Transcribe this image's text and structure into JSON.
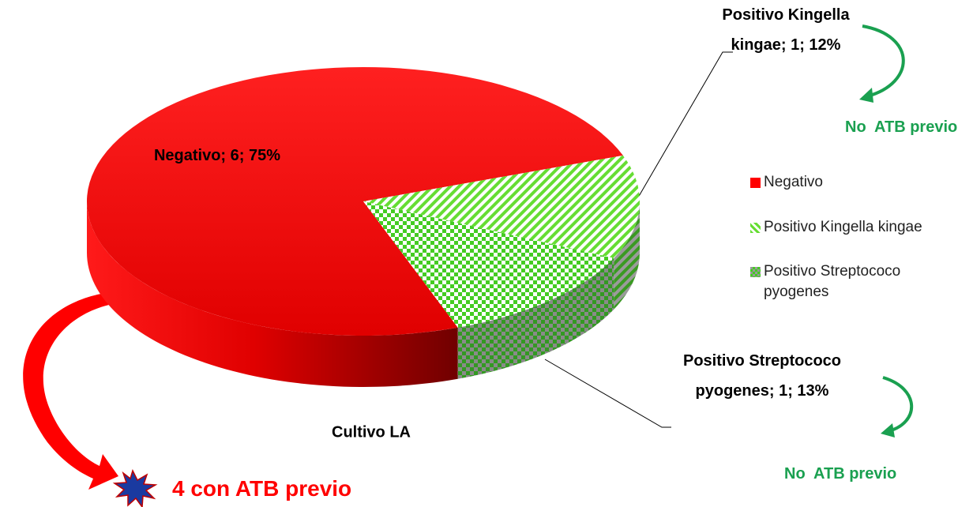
{
  "chart_data": {
    "type": "pie",
    "series_name": "Cultivo LA",
    "categories": [
      "Negativo",
      "Positivo Kingella kingae",
      "Positivo Streptococo pyogenes"
    ],
    "values": [
      6,
      1,
      1
    ],
    "value_labels": [
      "Negativo; 6; 75%",
      "Positivo Kingella kingae; 1; 12%",
      "Positivo Streptococo pyogenes; 1; 13%"
    ],
    "colors": [
      "#ff0000",
      "#66dd33",
      "#44aa22"
    ],
    "legend": "right",
    "annotations": [
      "No  ATB previo",
      "No  ATB previo",
      "4 con ATB previo"
    ]
  }
}
